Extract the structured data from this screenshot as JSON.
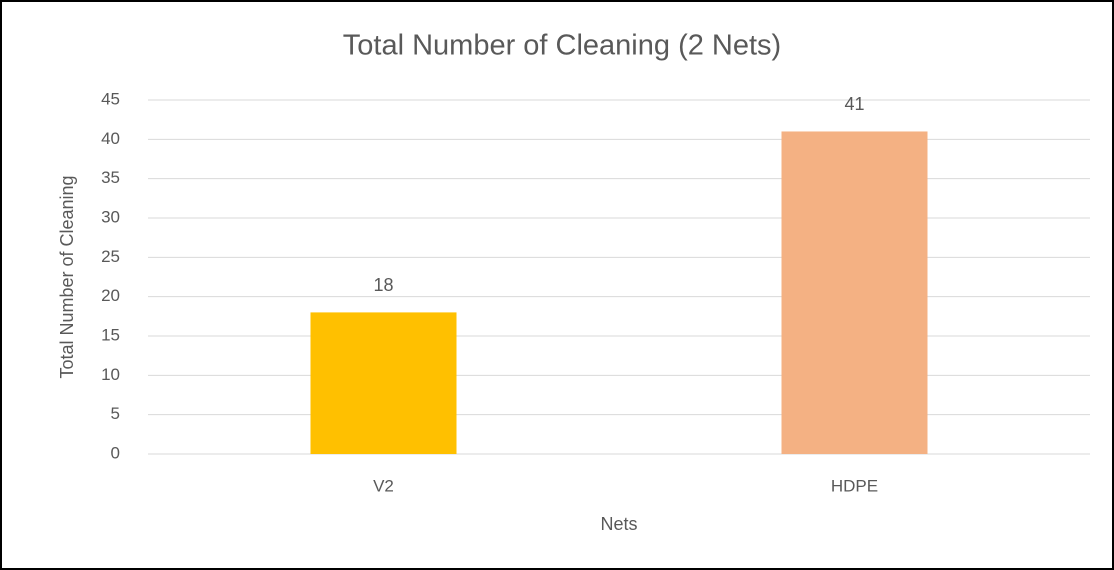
{
  "chart_data": {
    "type": "bar",
    "title": "Total Number of Cleaning (2 Nets)",
    "x_label": "Nets",
    "y_label": "Total Number  of Cleaning",
    "categories": [
      "V2",
      "HDPE"
    ],
    "values": [
      18,
      41
    ],
    "colors": [
      "#ffc000",
      "#f4b183"
    ],
    "ylim": [
      0,
      45
    ],
    "yticks": [
      0,
      5,
      10,
      15,
      20,
      25,
      30,
      35,
      40,
      45
    ],
    "grid": true
  }
}
